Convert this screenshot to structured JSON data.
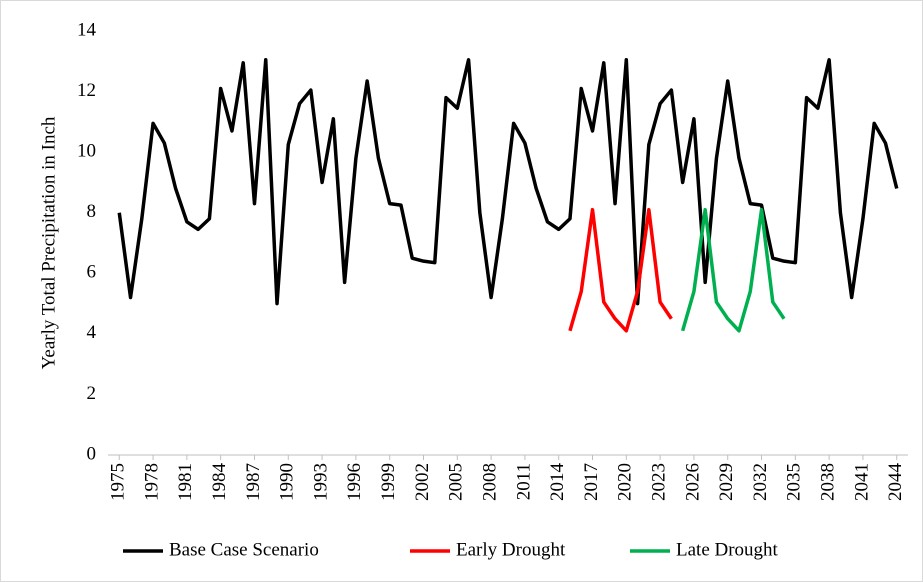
{
  "chart_data": {
    "type": "line",
    "ylabel": "Yearly Total Precipitation in Inch",
    "x": [
      1975,
      1976,
      1977,
      1978,
      1979,
      1980,
      1981,
      1982,
      1983,
      1984,
      1985,
      1986,
      1987,
      1988,
      1989,
      1990,
      1991,
      1992,
      1993,
      1994,
      1995,
      1996,
      1997,
      1998,
      1999,
      2000,
      2001,
      2002,
      2003,
      2004,
      2005,
      2006,
      2007,
      2008,
      2009,
      2010,
      2011,
      2012,
      2013,
      2014,
      2015,
      2016,
      2017,
      2018,
      2019,
      2020,
      2021,
      2022,
      2023,
      2024,
      2025,
      2026,
      2027,
      2028,
      2029,
      2030,
      2031,
      2032,
      2033,
      2034,
      2035,
      2036,
      2037,
      2038,
      2039,
      2040,
      2041,
      2042,
      2043,
      2044
    ],
    "series": [
      {
        "name": "Base Case Scenario",
        "color": "#000000",
        "values": [
          8.0,
          5.2,
          7.8,
          10.95,
          10.3,
          8.8,
          7.7,
          7.45,
          7.8,
          12.1,
          10.7,
          12.95,
          8.3,
          13.05,
          5.0,
          10.25,
          11.6,
          12.05,
          9.0,
          11.1,
          5.7,
          9.8,
          12.35,
          9.8,
          8.3,
          8.25,
          6.5,
          6.4,
          6.35,
          11.8,
          11.45,
          13.05,
          8.0,
          5.2,
          7.8,
          10.95,
          10.3,
          8.8,
          7.7,
          7.45,
          7.8,
          12.1,
          10.7,
          12.95,
          8.3,
          13.05,
          5.0,
          10.25,
          11.6,
          12.05,
          9.0,
          11.1,
          5.7,
          9.8,
          12.35,
          9.8,
          8.3,
          8.25,
          6.5,
          6.4,
          6.35,
          11.8,
          11.45,
          13.05,
          8.0,
          5.2,
          7.8,
          10.95,
          10.3,
          8.8
        ]
      },
      {
        "name": "Early Drought",
        "color": "#ff0000",
        "values": [
          null,
          null,
          null,
          null,
          null,
          null,
          null,
          null,
          null,
          null,
          null,
          null,
          null,
          null,
          null,
          null,
          null,
          null,
          null,
          null,
          null,
          null,
          null,
          null,
          null,
          null,
          null,
          null,
          null,
          null,
          null,
          null,
          null,
          null,
          null,
          null,
          null,
          null,
          null,
          null,
          4.1,
          5.4,
          8.1,
          5.05,
          4.5,
          4.1,
          5.4,
          8.1,
          5.05,
          4.5,
          null,
          null,
          null,
          null,
          null,
          null,
          null,
          null,
          null,
          null,
          null,
          null,
          null,
          null,
          null,
          null,
          null,
          null,
          null,
          null
        ]
      },
      {
        "name": "Late Drought",
        "color": "#00b050",
        "values": [
          null,
          null,
          null,
          null,
          null,
          null,
          null,
          null,
          null,
          null,
          null,
          null,
          null,
          null,
          null,
          null,
          null,
          null,
          null,
          null,
          null,
          null,
          null,
          null,
          null,
          null,
          null,
          null,
          null,
          null,
          null,
          null,
          null,
          null,
          null,
          null,
          null,
          null,
          null,
          null,
          null,
          null,
          null,
          null,
          null,
          null,
          null,
          null,
          null,
          null,
          4.1,
          5.4,
          8.1,
          5.05,
          4.5,
          4.1,
          5.4,
          8.1,
          5.05,
          4.5,
          null,
          null,
          null,
          null,
          null,
          null,
          null,
          null,
          null,
          null
        ]
      }
    ],
    "xlim": [
      1974,
      2045
    ],
    "xticks": [
      1975,
      1978,
      1981,
      1984,
      1987,
      1990,
      1993,
      1996,
      1999,
      2002,
      2005,
      2008,
      2011,
      2014,
      2017,
      2020,
      2023,
      2026,
      2029,
      2032,
      2035,
      2038,
      2041,
      2044
    ],
    "ylim": [
      0,
      14
    ],
    "yticks": [
      0,
      2,
      4,
      6,
      8,
      10,
      12,
      14
    ],
    "grid": false,
    "legend": "bottom"
  }
}
